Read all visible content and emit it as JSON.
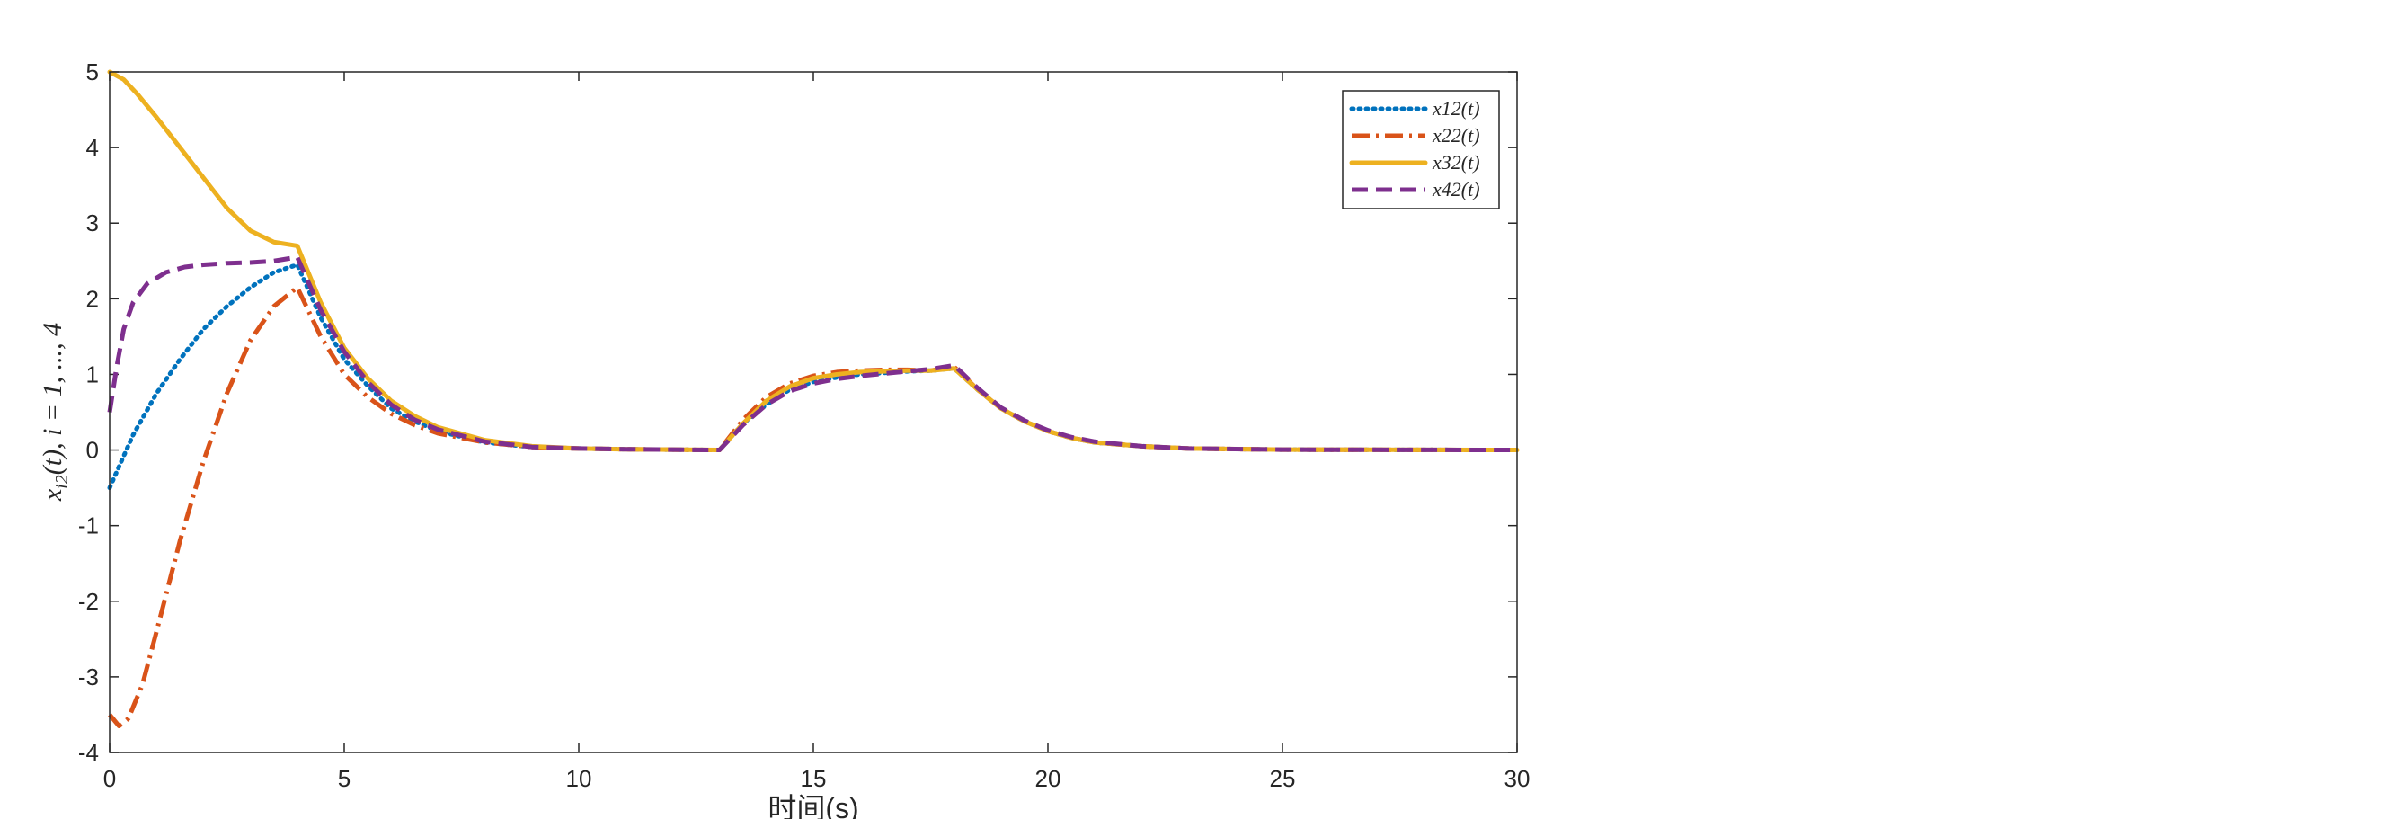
{
  "chart_data": {
    "type": "line",
    "xlabel": "时间(s)",
    "ylabel": "x_{i2}(t), i = 1, ..., 4",
    "xlim": [
      0,
      30
    ],
    "ylim": [
      -4,
      5
    ],
    "xticks": [
      0,
      5,
      10,
      15,
      20,
      25,
      30
    ],
    "yticks": [
      -4,
      -3,
      -2,
      -1,
      0,
      1,
      2,
      3,
      4,
      5
    ],
    "grid": false,
    "legend_position": "top-right",
    "series": [
      {
        "name": "x12(t)",
        "color": "#0072BD",
        "style": "dotted",
        "points": [
          [
            0,
            -0.5
          ],
          [
            0.5,
            0.2
          ],
          [
            1,
            0.75
          ],
          [
            1.5,
            1.2
          ],
          [
            2,
            1.6
          ],
          [
            2.5,
            1.9
          ],
          [
            3,
            2.15
          ],
          [
            3.5,
            2.35
          ],
          [
            4,
            2.45
          ],
          [
            4.5,
            1.75
          ],
          [
            5,
            1.2
          ],
          [
            5.5,
            0.85
          ],
          [
            6,
            0.55
          ],
          [
            6.5,
            0.38
          ],
          [
            7,
            0.25
          ],
          [
            8,
            0.1
          ],
          [
            9,
            0.04
          ],
          [
            10,
            0.02
          ],
          [
            11,
            0.01
          ],
          [
            12,
            0.005
          ],
          [
            13,
            0
          ],
          [
            13.5,
            0.35
          ],
          [
            14,
            0.6
          ],
          [
            14.5,
            0.8
          ],
          [
            15,
            0.9
          ],
          [
            15.5,
            0.96
          ],
          [
            16,
            1.0
          ],
          [
            16.5,
            1.02
          ],
          [
            17,
            1.04
          ],
          [
            17.5,
            1.05
          ],
          [
            18,
            1.08
          ],
          [
            18.5,
            0.8
          ],
          [
            19,
            0.55
          ],
          [
            19.5,
            0.38
          ],
          [
            20,
            0.25
          ],
          [
            20.5,
            0.16
          ],
          [
            21,
            0.1
          ],
          [
            22,
            0.05
          ],
          [
            23,
            0.02
          ],
          [
            25,
            0.005
          ],
          [
            30,
            0
          ]
        ]
      },
      {
        "name": "x22(t)",
        "color": "#D95319",
        "style": "dashdot",
        "points": [
          [
            0,
            -3.5
          ],
          [
            0.2,
            -3.65
          ],
          [
            0.4,
            -3.55
          ],
          [
            0.7,
            -3.1
          ],
          [
            1,
            -2.4
          ],
          [
            1.5,
            -1.2
          ],
          [
            2,
            -0.15
          ],
          [
            2.5,
            0.75
          ],
          [
            3,
            1.45
          ],
          [
            3.5,
            1.9
          ],
          [
            4,
            2.15
          ],
          [
            4.5,
            1.5
          ],
          [
            5,
            1.0
          ],
          [
            5.5,
            0.7
          ],
          [
            6,
            0.48
          ],
          [
            6.5,
            0.33
          ],
          [
            7,
            0.22
          ],
          [
            8,
            0.1
          ],
          [
            9,
            0.04
          ],
          [
            10,
            0.02
          ],
          [
            11,
            0.01
          ],
          [
            12,
            0.005
          ],
          [
            13,
            0
          ],
          [
            13.5,
            0.4
          ],
          [
            14,
            0.7
          ],
          [
            14.5,
            0.88
          ],
          [
            15,
            0.98
          ],
          [
            15.5,
            1.03
          ],
          [
            16,
            1.05
          ],
          [
            16.5,
            1.06
          ],
          [
            17,
            1.06
          ],
          [
            17.5,
            1.05
          ],
          [
            18,
            1.1
          ],
          [
            18.5,
            0.8
          ],
          [
            19,
            0.55
          ],
          [
            19.5,
            0.38
          ],
          [
            20,
            0.25
          ],
          [
            20.5,
            0.16
          ],
          [
            21,
            0.1
          ],
          [
            22,
            0.05
          ],
          [
            23,
            0.02
          ],
          [
            25,
            0.005
          ],
          [
            30,
            0
          ]
        ]
      },
      {
        "name": "x32(t)",
        "color": "#EDB120",
        "style": "solid",
        "points": [
          [
            0,
            5
          ],
          [
            0.3,
            4.9
          ],
          [
            0.6,
            4.7
          ],
          [
            1,
            4.4
          ],
          [
            1.5,
            4.0
          ],
          [
            2,
            3.6
          ],
          [
            2.5,
            3.2
          ],
          [
            3,
            2.9
          ],
          [
            3.5,
            2.75
          ],
          [
            4,
            2.7
          ],
          [
            4.5,
            1.95
          ],
          [
            5,
            1.35
          ],
          [
            5.5,
            0.95
          ],
          [
            6,
            0.65
          ],
          [
            6.5,
            0.45
          ],
          [
            7,
            0.3
          ],
          [
            8,
            0.13
          ],
          [
            9,
            0.05
          ],
          [
            10,
            0.02
          ],
          [
            11,
            0.01
          ],
          [
            12,
            0.005
          ],
          [
            13,
            0
          ],
          [
            13.5,
            0.35
          ],
          [
            14,
            0.65
          ],
          [
            14.5,
            0.84
          ],
          [
            15,
            0.95
          ],
          [
            15.5,
            1.0
          ],
          [
            16,
            1.03
          ],
          [
            16.5,
            1.04
          ],
          [
            17,
            1.05
          ],
          [
            17.5,
            1.05
          ],
          [
            18,
            1.08
          ],
          [
            18.5,
            0.8
          ],
          [
            19,
            0.55
          ],
          [
            19.5,
            0.38
          ],
          [
            20,
            0.25
          ],
          [
            20.5,
            0.16
          ],
          [
            21,
            0.1
          ],
          [
            22,
            0.05
          ],
          [
            23,
            0.02
          ],
          [
            25,
            0.005
          ],
          [
            30,
            0
          ]
        ]
      },
      {
        "name": "x42(t)",
        "color": "#7E2F8E",
        "style": "dashed",
        "points": [
          [
            0,
            0.5
          ],
          [
            0.15,
            1.1
          ],
          [
            0.3,
            1.6
          ],
          [
            0.5,
            1.95
          ],
          [
            0.8,
            2.2
          ],
          [
            1.2,
            2.35
          ],
          [
            1.6,
            2.42
          ],
          [
            2,
            2.45
          ],
          [
            2.5,
            2.47
          ],
          [
            3,
            2.48
          ],
          [
            3.5,
            2.5
          ],
          [
            4,
            2.55
          ],
          [
            4.5,
            1.85
          ],
          [
            5,
            1.3
          ],
          [
            5.5,
            0.9
          ],
          [
            6,
            0.6
          ],
          [
            6.5,
            0.4
          ],
          [
            7,
            0.27
          ],
          [
            8,
            0.11
          ],
          [
            9,
            0.04
          ],
          [
            10,
            0.02
          ],
          [
            11,
            0.01
          ],
          [
            12,
            0.005
          ],
          [
            13,
            0
          ],
          [
            13.5,
            0.33
          ],
          [
            14,
            0.6
          ],
          [
            14.5,
            0.78
          ],
          [
            15,
            0.88
          ],
          [
            15.5,
            0.94
          ],
          [
            16,
            0.98
          ],
          [
            16.5,
            1.01
          ],
          [
            17,
            1.04
          ],
          [
            17.5,
            1.07
          ],
          [
            18,
            1.12
          ],
          [
            18.5,
            0.82
          ],
          [
            19,
            0.56
          ],
          [
            19.5,
            0.39
          ],
          [
            20,
            0.26
          ],
          [
            20.5,
            0.17
          ],
          [
            21,
            0.11
          ],
          [
            22,
            0.05
          ],
          [
            23,
            0.02
          ],
          [
            25,
            0.005
          ],
          [
            30,
            0
          ]
        ]
      }
    ]
  }
}
